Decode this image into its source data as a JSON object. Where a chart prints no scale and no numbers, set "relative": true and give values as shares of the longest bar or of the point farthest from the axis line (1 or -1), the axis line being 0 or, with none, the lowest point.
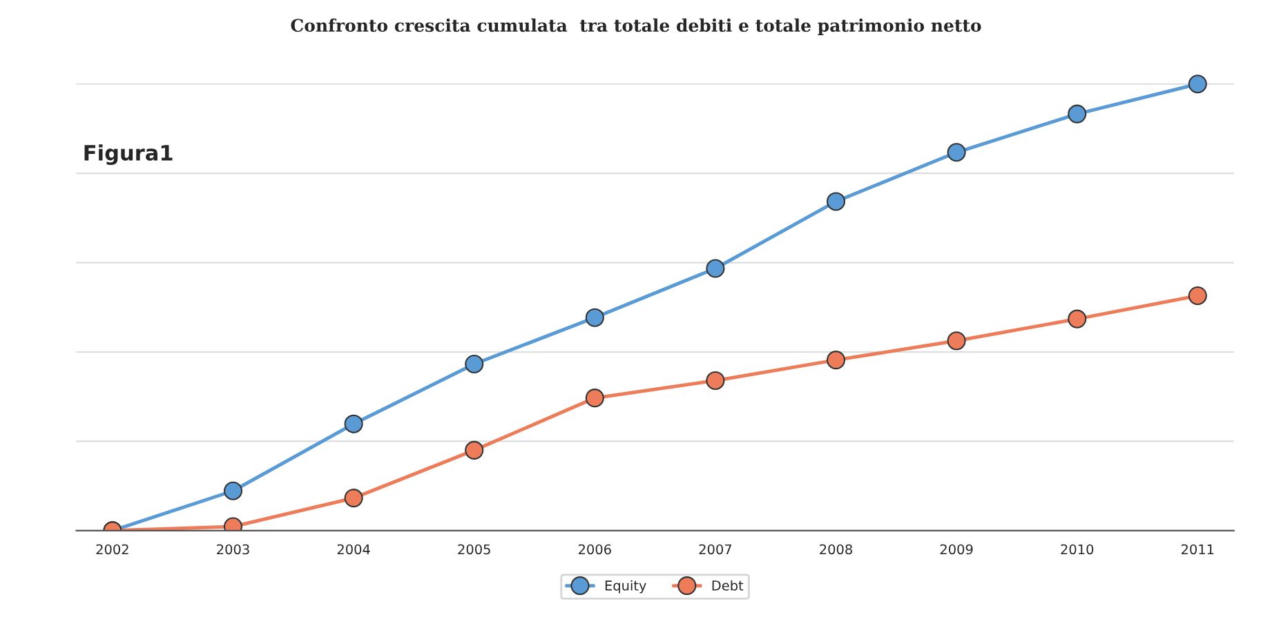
{
  "chart_data": {
    "type": "line",
    "title": "Confronto crescita cumulata  tra totale debiti e totale patrimonio netto",
    "relative": true,
    "categories": [
      "2002",
      "2003",
      "2004",
      "2005",
      "2006",
      "2007",
      "2008",
      "2009",
      "2010",
      "2011"
    ],
    "series": [
      {
        "name": "Equity",
        "color": "#5b9bd5",
        "values": [
          0,
          0.089,
          0.239,
          0.373,
          0.477,
          0.587,
          0.737,
          0.847,
          0.933,
          1
        ]
      },
      {
        "name": "Debt",
        "color": "#ed7d5a",
        "values": [
          0,
          0.009,
          0.073,
          0.18,
          0.297,
          0.336,
          0.382,
          0.425,
          0.474,
          0.526
        ]
      }
    ],
    "annotations": [
      "Figura1"
    ],
    "marker": "circle",
    "line_style": "solid",
    "grid": "y",
    "legend": "bottom"
  }
}
